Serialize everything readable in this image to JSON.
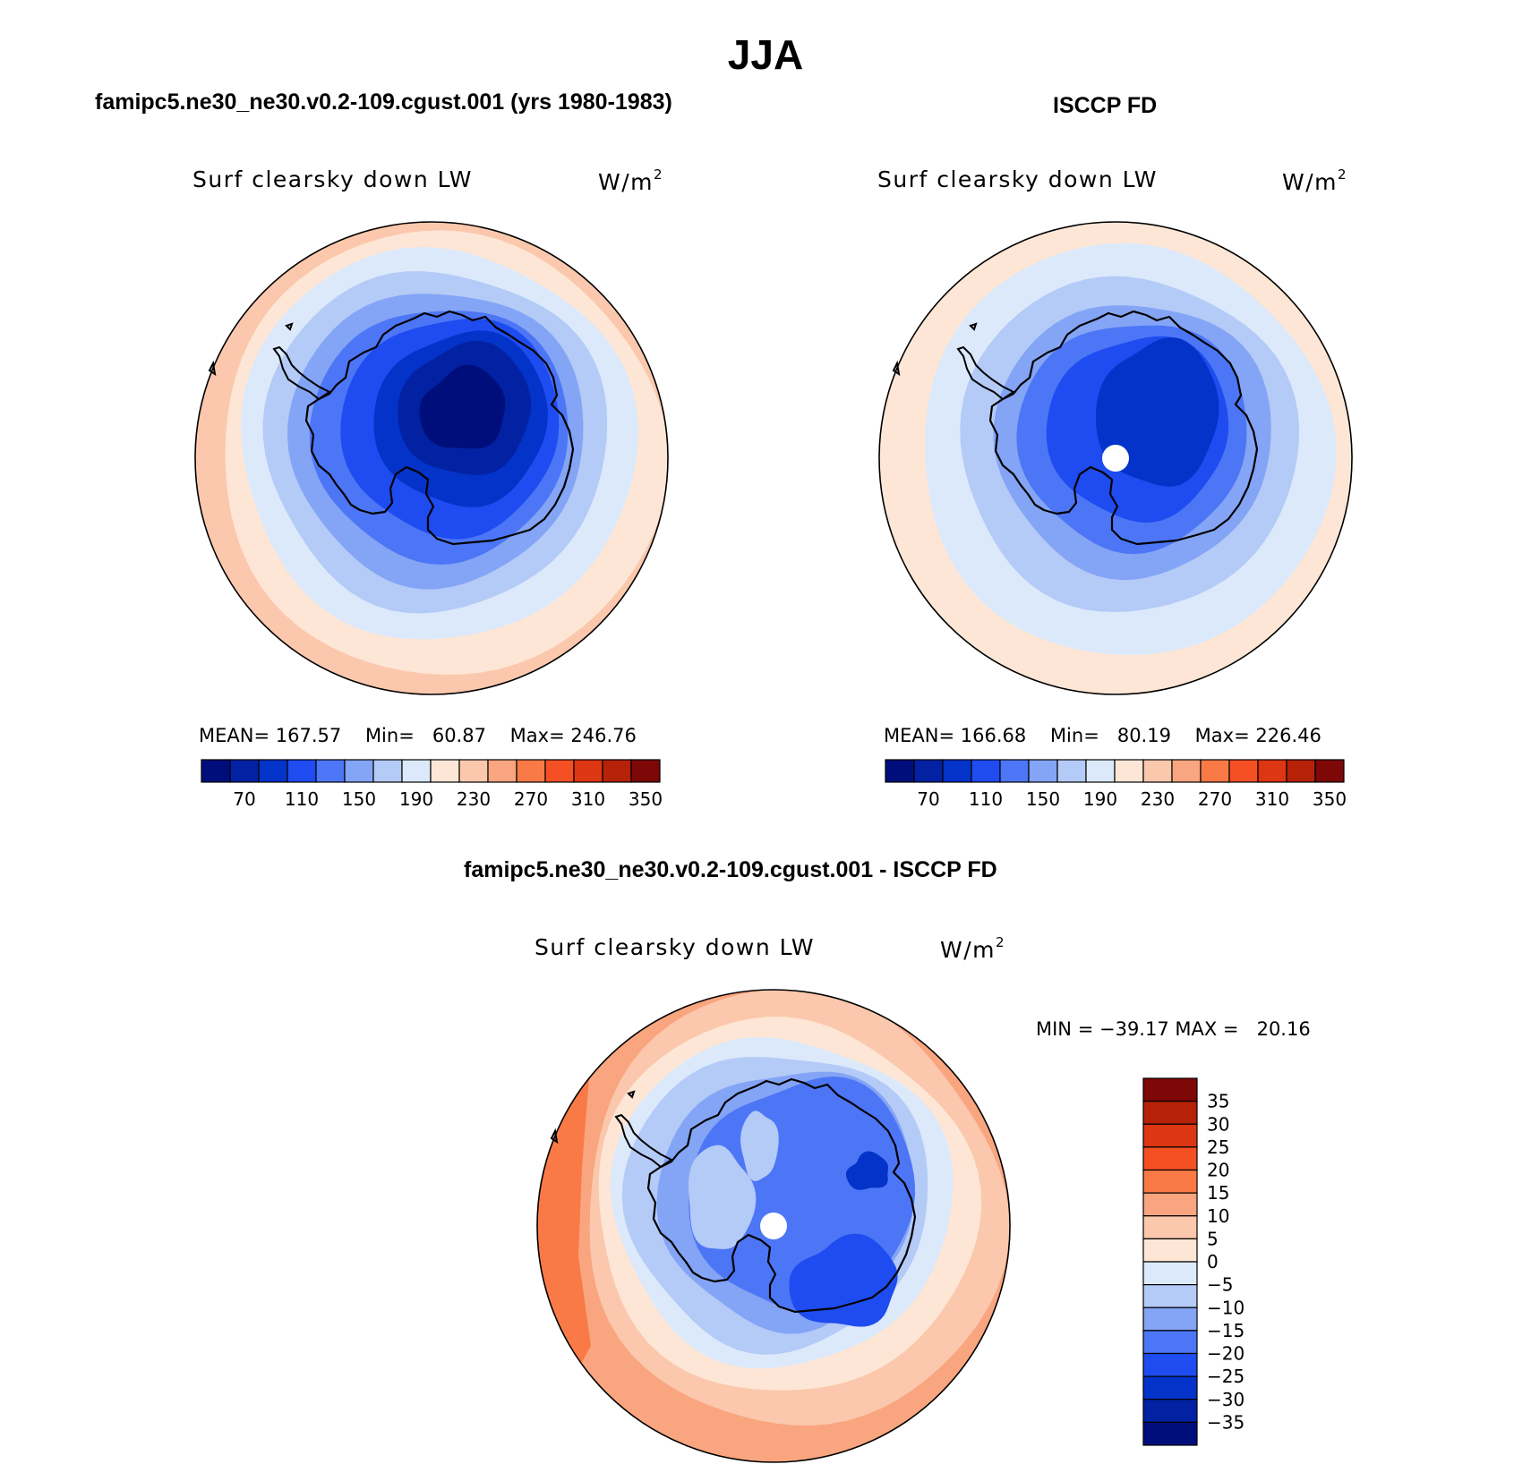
{
  "title": "JJA",
  "panels": [
    {
      "title": "famipc5.ne30_ne30.v0.2-109.cgust.001 (yrs 1980-1983)",
      "variable": "Surf clearsky down LW",
      "units_base": "W/m",
      "units_exp": "2",
      "stats": {
        "mean_label": "MEAN=",
        "mean": "167.57",
        "min_label": "Min=",
        "min": "60.87",
        "max_label": "Max=",
        "max": "246.76"
      },
      "pole_masked": false
    },
    {
      "title": "ISCCP FD",
      "variable": "Surf clearsky down LW",
      "units_base": "W/m",
      "units_exp": "2",
      "stats": {
        "mean_label": "MEAN=",
        "mean": "166.68",
        "min_label": "Min=",
        "min": "80.19",
        "max_label": "Max=",
        "max": "226.46"
      },
      "pole_masked": true
    },
    {
      "title": "famipc5.ne30_ne30.v0.2-109.cgust.001 - ISCCP FD",
      "variable": "Surf clearsky down LW",
      "units_base": "W/m",
      "units_exp": "2",
      "stats": {
        "min_label": "MIN =",
        "min": "−39.17",
        "max_label": "MAX =",
        "max": "20.16"
      },
      "pole_masked": true
    }
  ],
  "chart_data": {
    "type": "heatmap",
    "projection": "south polar stereographic",
    "colorbars": [
      {
        "orientation": "horizontal",
        "tick_labels": [
          "70",
          "110",
          "150",
          "190",
          "230",
          "270",
          "310",
          "350"
        ],
        "colors": [
          "#000e7c",
          "#0222a3",
          "#0433c9",
          "#1e4cf0",
          "#4c76f5",
          "#84a4f5",
          "#b4caf7",
          "#dbe9fb",
          "#fde6d5",
          "#fbc8ad",
          "#f9a57f",
          "#f97a47",
          "#f45023",
          "#dc3612",
          "#b52207",
          "#7e0707"
        ]
      },
      {
        "orientation": "vertical",
        "tick_labels": [
          "35",
          "30",
          "25",
          "20",
          "15",
          "10",
          "5",
          "0",
          "−5",
          "−10",
          "−15",
          "−20",
          "−25",
          "−30",
          "−35"
        ],
        "colors": [
          "#7e0707",
          "#b52207",
          "#dc3612",
          "#f45023",
          "#f97a47",
          "#f9a57f",
          "#fbc8ad",
          "#fde6d5",
          "#dbe9fb",
          "#b4caf7",
          "#84a4f5",
          "#4c76f5",
          "#1e4cf0",
          "#0433c9",
          "#0222a3",
          "#000e7c"
        ]
      }
    ]
  }
}
